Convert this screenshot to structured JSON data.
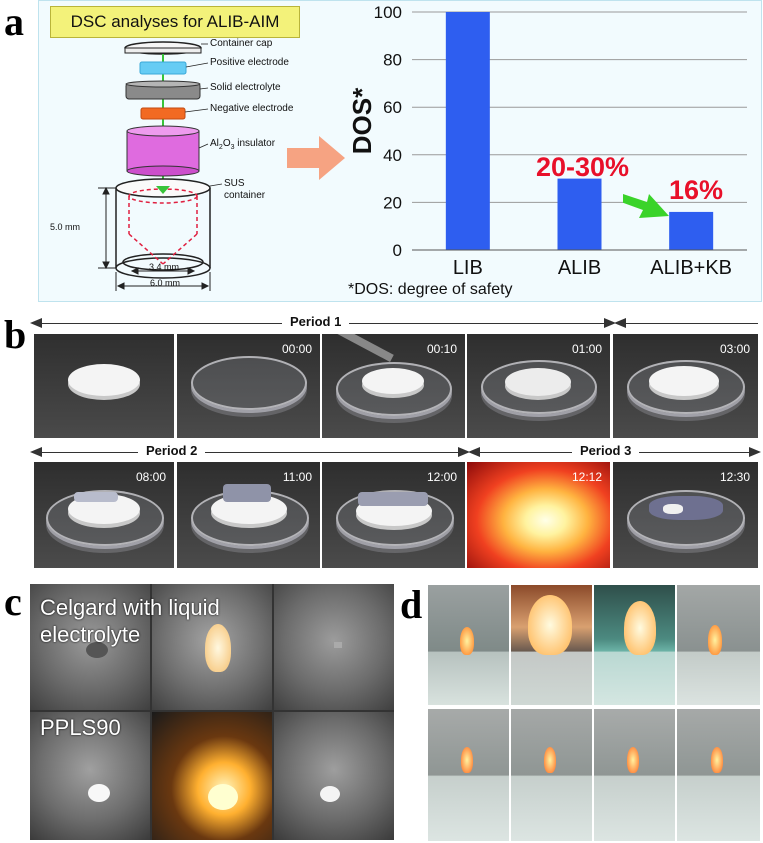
{
  "panel_labels": {
    "a": "a",
    "b": "b",
    "c": "c",
    "d": "d"
  },
  "panel_a": {
    "title": "DSC analyses for ALIB-AIM",
    "components": {
      "cap": "Container cap",
      "pos": "Positive electrode",
      "solid": "Solid electrolyte",
      "neg": "Negative electrode",
      "ins_pre": "Al",
      "ins_sub": "2",
      "ins_mid": "O",
      "ins_sub2": "3",
      "ins_post": " insulator",
      "sus1": "SUS",
      "sus2": "container"
    },
    "dims": {
      "height": "5.0 mm",
      "inner": "3.4 mm",
      "outer": "6.0 mm"
    },
    "footnote": "*DOS: degree of safety",
    "annotations": {
      "alib": "20-30%",
      "alibkb": "16%"
    }
  },
  "chart_data": {
    "type": "bar",
    "categories": [
      "LIB",
      "ALIB",
      "ALIB+KB"
    ],
    "values": [
      100,
      30,
      16
    ],
    "ylabel": "DOS*",
    "ylim": [
      0,
      100
    ],
    "yticks": [
      "0",
      "20",
      "40",
      "60",
      "80",
      "100"
    ],
    "bar_color": "#2e5ef0",
    "grid": true
  },
  "panel_b": {
    "periods": [
      "Period 1",
      "Period 2",
      "Period 3"
    ],
    "row1_times": [
      "",
      "00:00",
      "00:10",
      "01:00",
      "03:00"
    ],
    "row2_times": [
      "08:00",
      "11:00",
      "12:00",
      "12:12",
      "12:30"
    ]
  },
  "panel_c": {
    "label_top": "Celgard with liquid electrolyte",
    "label_top_line1": "Celgard with liquid",
    "label_top_line2": "electrolyte",
    "label_bottom": "PPLS90"
  },
  "colors": {
    "bar": "#2e5ef0",
    "annotation_red": "#e8102a",
    "arrow_green": "#3ad32a",
    "arrow_orange": "#f6a382"
  }
}
